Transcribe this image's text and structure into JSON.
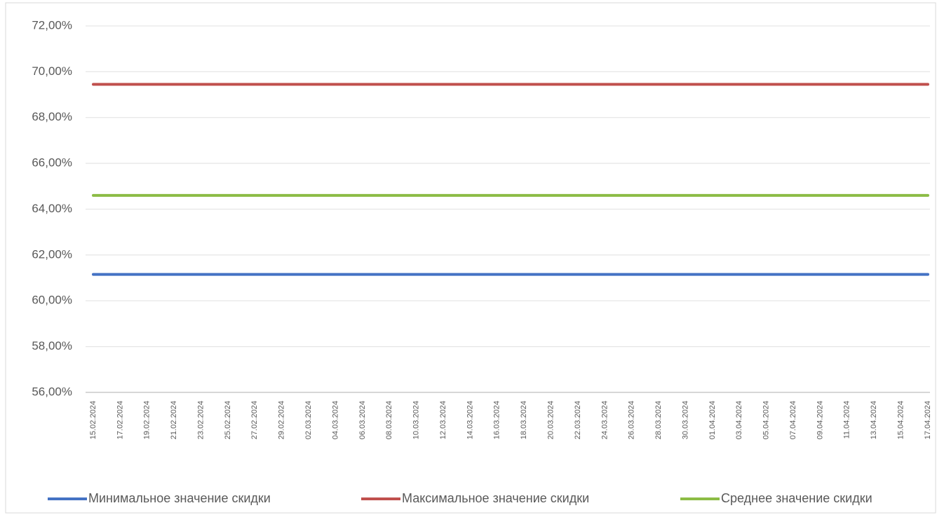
{
  "chart_data": {
    "type": "line",
    "categories": [
      "15.02.2024",
      "17.02.2024",
      "19.02.2024",
      "21.02.2024",
      "23.02.2024",
      "25.02.2024",
      "27.02.2024",
      "29.02.2024",
      "02.03.2024",
      "04.03.2024",
      "06.03.2024",
      "08.03.2024",
      "10.03.2024",
      "12.03.2024",
      "14.03.2024",
      "16.03.2024",
      "18.03.2024",
      "20.03.2024",
      "22.03.2024",
      "24.03.2024",
      "26.03.2024",
      "28.03.2024",
      "30.03.2024",
      "01.04.2024",
      "03.04.2024",
      "05.04.2024",
      "07.04.2024",
      "09.04.2024",
      "11.04.2024",
      "13.04.2024",
      "15.04.2024",
      "17.04.2024"
    ],
    "series": [
      {
        "name": "Минимальное значение скидки",
        "color": "#4472c4",
        "values": [
          61.15,
          61.15,
          61.15,
          61.15,
          61.15,
          61.15,
          61.15,
          61.15,
          61.15,
          61.15,
          61.15,
          61.15,
          61.15,
          61.15,
          61.15,
          61.15,
          61.15,
          61.15,
          61.15,
          61.15,
          61.15,
          61.15,
          61.15,
          61.15,
          61.15,
          61.15,
          61.15,
          61.15,
          61.15,
          61.15,
          61.15,
          61.15
        ]
      },
      {
        "name": "Максимальное значение скидки",
        "color": "#c0504d",
        "values": [
          69.45,
          69.45,
          69.45,
          69.45,
          69.45,
          69.45,
          69.45,
          69.45,
          69.45,
          69.45,
          69.45,
          69.45,
          69.45,
          69.45,
          69.45,
          69.45,
          69.45,
          69.45,
          69.45,
          69.45,
          69.45,
          69.45,
          69.45,
          69.45,
          69.45,
          69.45,
          69.45,
          69.45,
          69.45,
          69.45,
          69.45,
          69.45
        ]
      },
      {
        "name": "Среднее значение скидки",
        "color": "#8cbc45",
        "values": [
          64.6,
          64.6,
          64.6,
          64.6,
          64.6,
          64.6,
          64.6,
          64.6,
          64.6,
          64.6,
          64.6,
          64.6,
          64.6,
          64.6,
          64.6,
          64.6,
          64.6,
          64.6,
          64.6,
          64.6,
          64.6,
          64.6,
          64.6,
          64.6,
          64.6,
          64.6,
          64.6,
          64.6,
          64.6,
          64.6,
          64.6,
          64.6
        ]
      }
    ],
    "ylim": [
      56,
      72
    ],
    "yticks": [
      {
        "value": 56,
        "label": "56,00%"
      },
      {
        "value": 58,
        "label": "58,00%"
      },
      {
        "value": 60,
        "label": "60,00%"
      },
      {
        "value": 62,
        "label": "62,00%"
      },
      {
        "value": 64,
        "label": "64,00%"
      },
      {
        "value": 66,
        "label": "66,00%"
      },
      {
        "value": 68,
        "label": "68,00%"
      },
      {
        "value": 70,
        "label": "70,00%"
      },
      {
        "value": 72,
        "label": "72,00%"
      }
    ],
    "grid": true,
    "legend": "bottom"
  }
}
